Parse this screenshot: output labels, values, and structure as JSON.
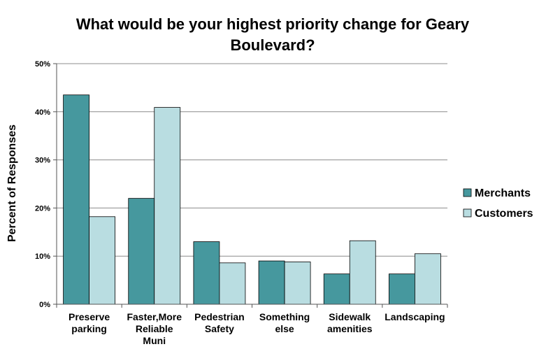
{
  "chart_data": {
    "type": "bar",
    "title_lines": [
      "What would be your highest priority change for Geary",
      "Boulevard?"
    ],
    "ylabel": "Percent of Responses",
    "xlabel": "",
    "ylim": [
      0,
      50
    ],
    "yticks": [
      "0%",
      "10%",
      "20%",
      "30%",
      "40%",
      "50%"
    ],
    "ytick_values": [
      0,
      10,
      20,
      30,
      40,
      50
    ],
    "grid": true,
    "legend_position": "right",
    "categories": [
      [
        "Preserve",
        "parking"
      ],
      [
        "Faster,More",
        "Reliable",
        "Muni"
      ],
      [
        "Pedestrian",
        "Safety"
      ],
      [
        "Something",
        "else"
      ],
      [
        "Sidewalk",
        "amenities"
      ],
      [
        "Landscaping"
      ]
    ],
    "series": [
      {
        "name": "Merchants",
        "color": "#46989e",
        "values": [
          43.5,
          22,
          13,
          9,
          6.3,
          6.3
        ]
      },
      {
        "name": "Customers",
        "color": "#b9dde1",
        "values": [
          18.2,
          40.9,
          8.6,
          8.8,
          13.2,
          10.5
        ]
      }
    ]
  }
}
